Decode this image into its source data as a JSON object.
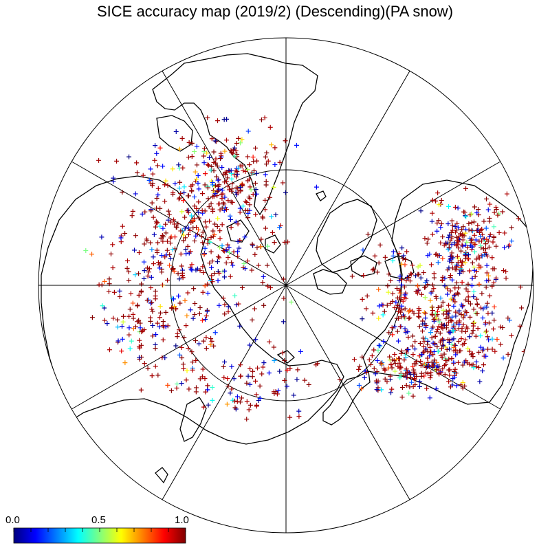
{
  "title": "SICE accuracy map (2019/2) (Descending)(PA snow)",
  "colorbar": {
    "min_label": "0.0",
    "mid_label": "0.5",
    "max_label": "1.0",
    "stops": [
      "#00007f",
      "#0000ff",
      "#007fff",
      "#00ffff",
      "#7fff7f",
      "#ffff00",
      "#ff7f00",
      "#ff0000",
      "#7f0000"
    ]
  },
  "map": {
    "projection": "north polar stereographic",
    "meridian_lines_every_deg": 30,
    "latitude_circle_deg": 60,
    "land_outline_color": "#000000",
    "grid_color": "#000000"
  }
}
